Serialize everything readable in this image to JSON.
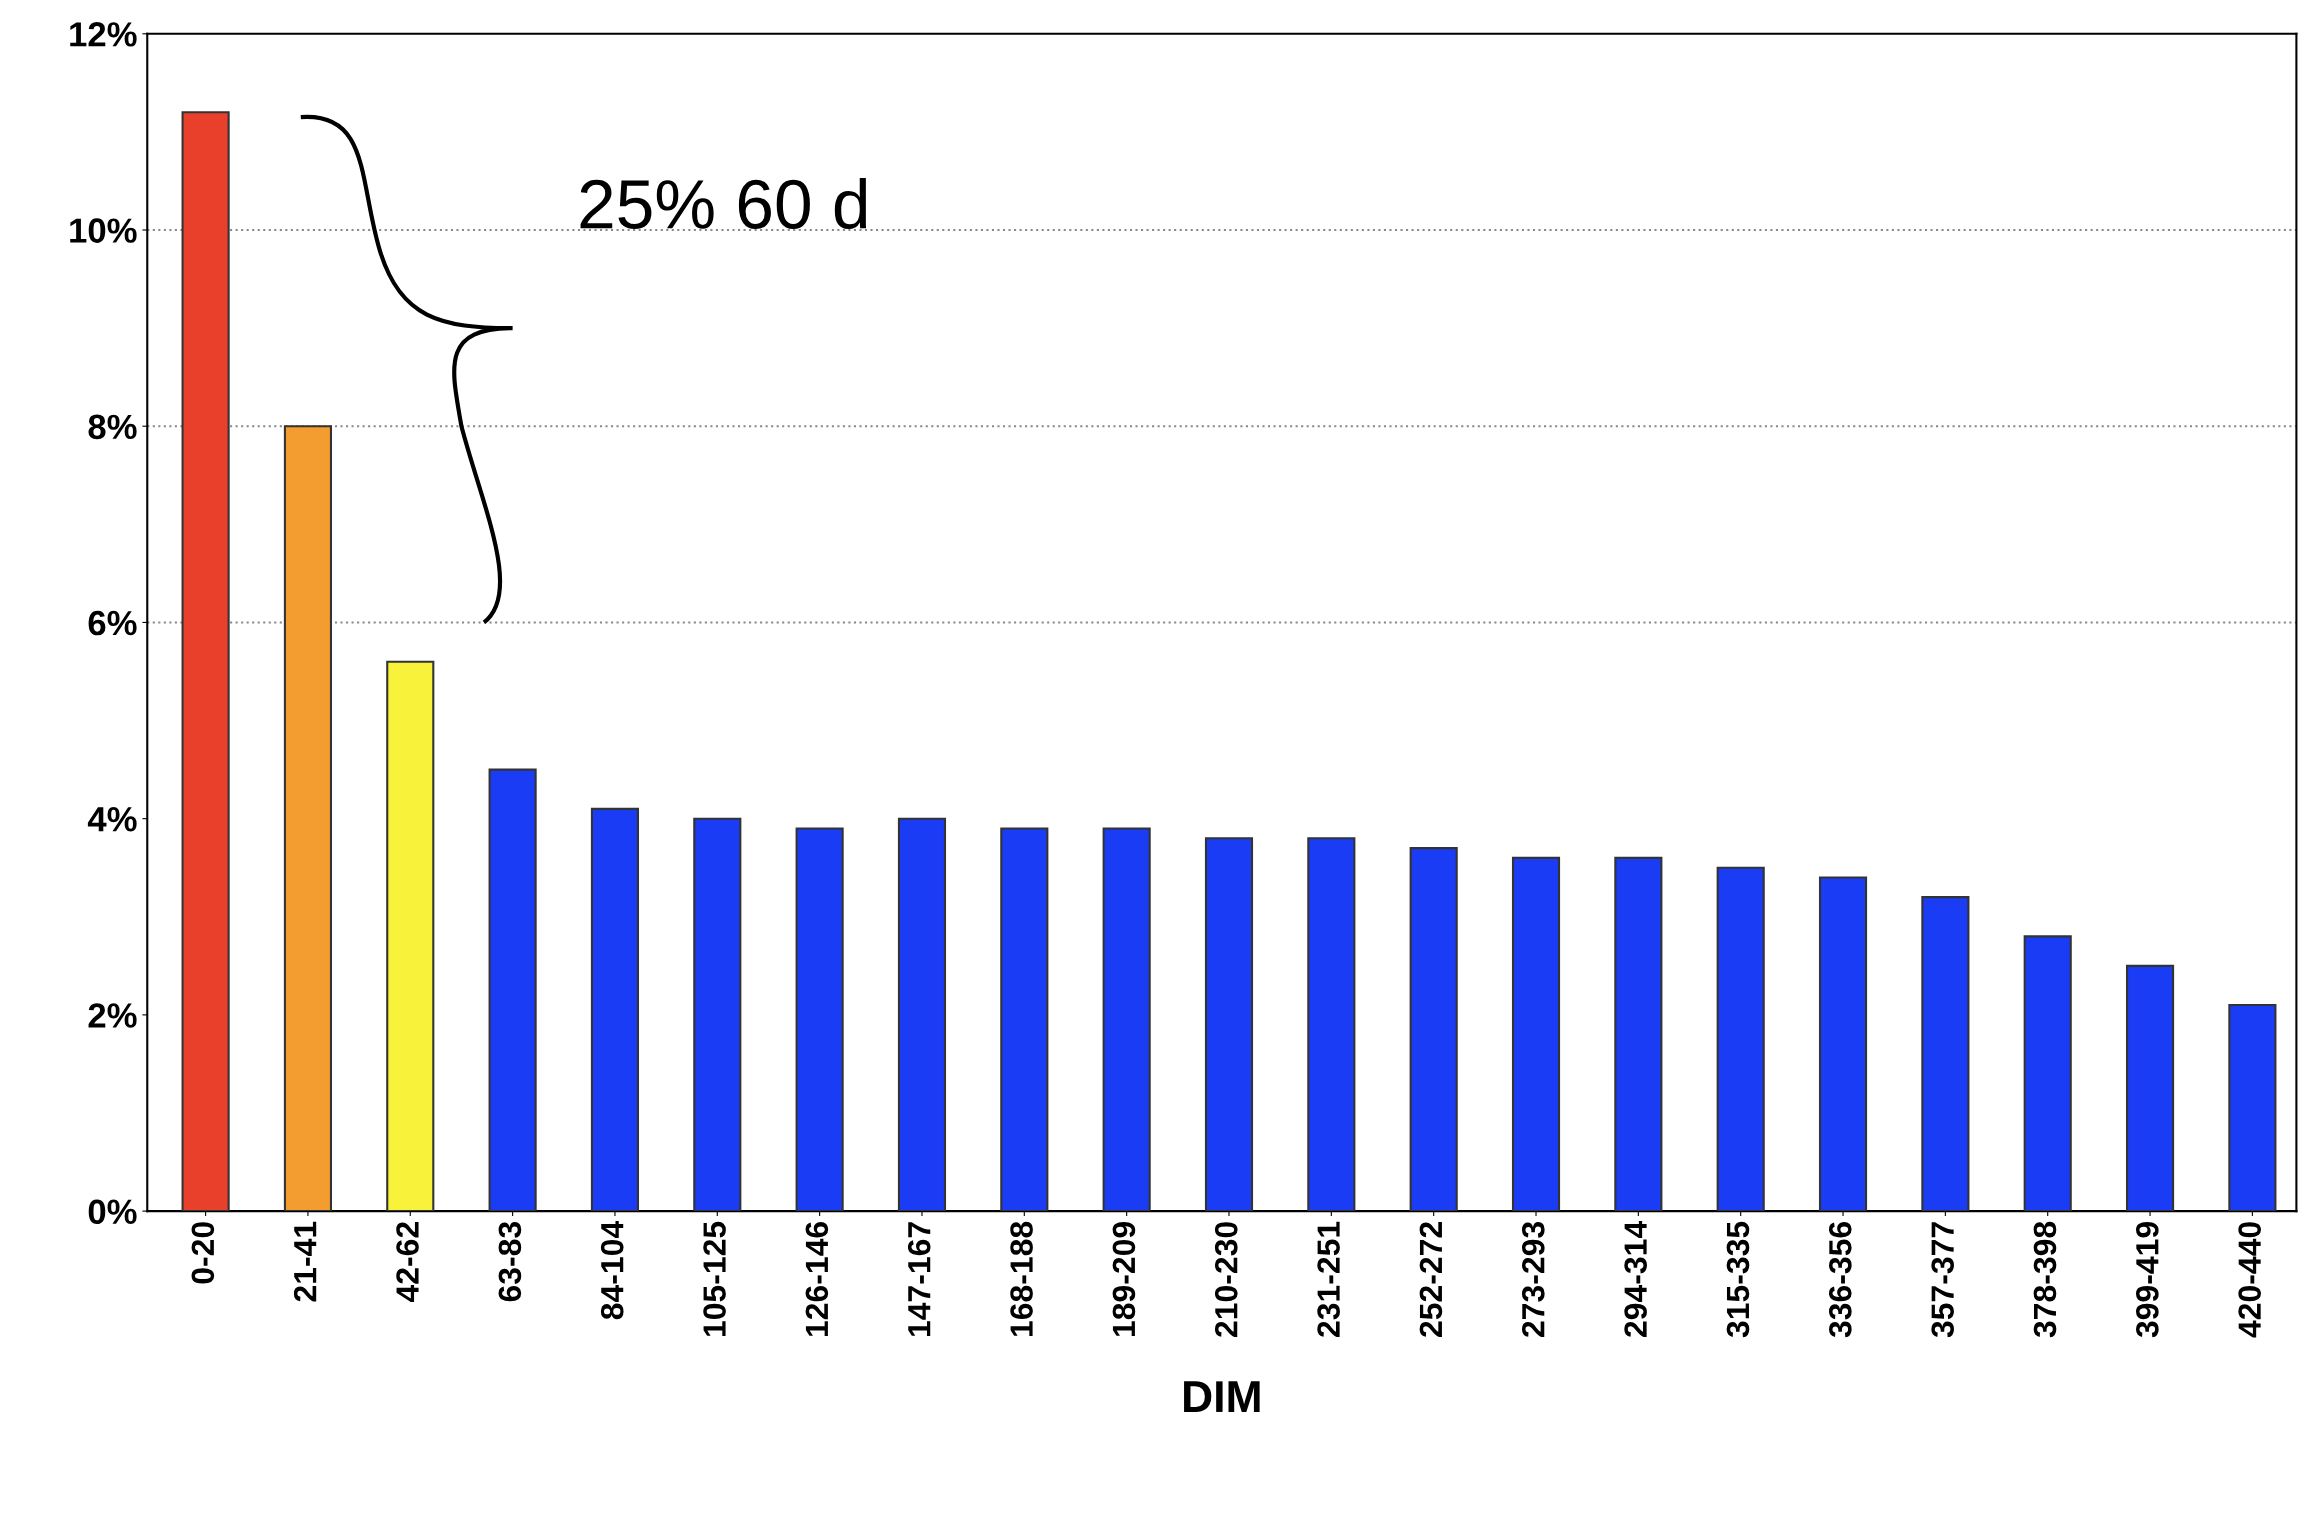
{
  "chart_data": {
    "type": "bar",
    "xlabel": "DIM",
    "categories": [
      "0-20",
      "21-41",
      "42-62",
      "63-83",
      "84-104",
      "105-125",
      "126-146",
      "147-167",
      "168-188",
      "189-209",
      "210-230",
      "231-251",
      "252-272",
      "273-293",
      "294-314",
      "315-335",
      "336-356",
      "357-377",
      "378-398",
      "399-419",
      "420-440"
    ],
    "values": [
      11.2,
      8.0,
      5.6,
      4.5,
      4.1,
      4.0,
      3.9,
      4.0,
      3.9,
      3.9,
      3.8,
      3.8,
      3.7,
      3.6,
      3.6,
      3.5,
      3.4,
      3.2,
      2.8,
      2.5,
      2.1
    ],
    "colors": [
      "#e8402a",
      "#f39c2f",
      "#f8f23a",
      "#1a3cf5",
      "#1a3cf5",
      "#1a3cf5",
      "#1a3cf5",
      "#1a3cf5",
      "#1a3cf5",
      "#1a3cf5",
      "#1a3cf5",
      "#1a3cf5",
      "#1a3cf5",
      "#1a3cf5",
      "#1a3cf5",
      "#1a3cf5",
      "#1a3cf5",
      "#1a3cf5",
      "#1a3cf5",
      "#1a3cf5",
      "#1a3cf5"
    ],
    "ylim": [
      0,
      12
    ],
    "yticks": [
      {
        "value": 0,
        "label": "0%"
      },
      {
        "value": 2,
        "label": "2%"
      },
      {
        "value": 4,
        "label": "4%"
      },
      {
        "value": 6,
        "label": "6%"
      },
      {
        "value": 8,
        "label": "8%"
      },
      {
        "value": 10,
        "label": "10%"
      },
      {
        "value": 12,
        "label": "12%"
      }
    ],
    "ref_lines": [
      {
        "axis": "y",
        "value": 6,
        "color": "#888888",
        "line_style": "dotted"
      },
      {
        "axis": "y",
        "value": 8,
        "color": "#888888",
        "line_style": "dotted"
      },
      {
        "axis": "y",
        "value": 10,
        "color": "#888888",
        "line_style": "dotted"
      }
    ],
    "annotations": [
      "25% 60 d"
    ],
    "grid": false,
    "legend": false
  }
}
